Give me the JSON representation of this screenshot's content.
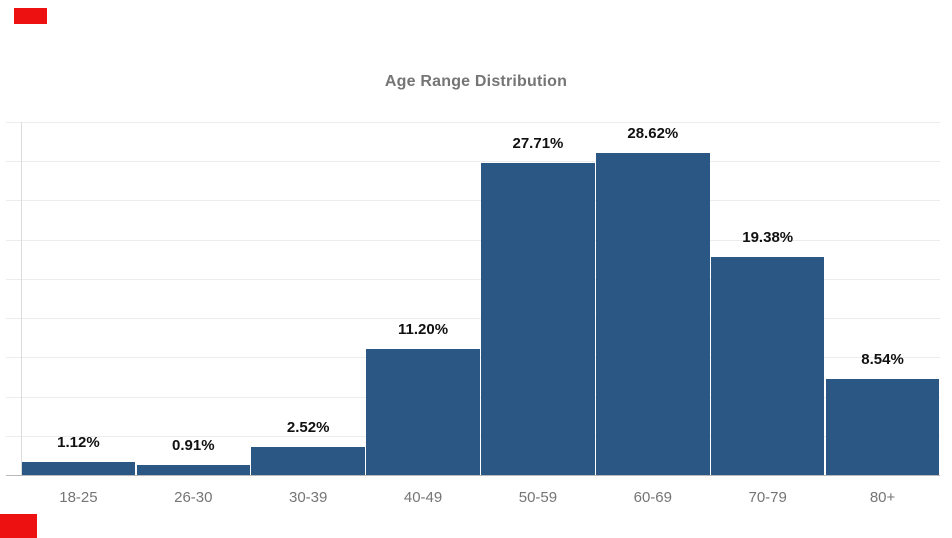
{
  "title": "Age Range Distribution",
  "chart_data": {
    "type": "bar",
    "title": "Age Range Distribution",
    "categories": [
      "18-25",
      "26-30",
      "30-39",
      "40-49",
      "50-59",
      "60-69",
      "70-79",
      "80+"
    ],
    "values": [
      1.12,
      0.91,
      2.52,
      11.2,
      27.71,
      28.62,
      19.38,
      8.54
    ],
    "value_labels": [
      "1.12%",
      "0.91%",
      "2.52%",
      "11.20%",
      "27.71%",
      "28.62%",
      "19.38%",
      "8.54%"
    ],
    "xlabel": "",
    "ylabel": "",
    "ylim": [
      0,
      31.4
    ],
    "grid": "horizontal-only",
    "gridline_count": 10,
    "legend": "none",
    "bar_style": "histogram-adjacent"
  },
  "colors": {
    "bar": "#2a5783",
    "gridline": "#ececec",
    "y_axis_line": "#dcdcdc",
    "x_axis_line": "#b9b9b9",
    "value_label": "#111111",
    "tick_label": "#757575",
    "title": "#757575",
    "background": "#ffffff",
    "annotation_mark": "#ee1111"
  }
}
